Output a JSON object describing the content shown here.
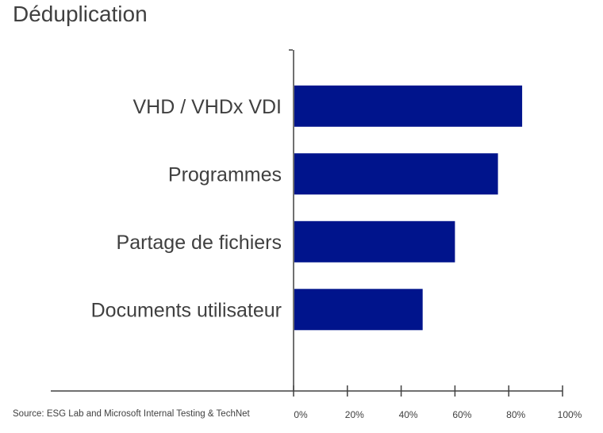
{
  "title": "Déduplication",
  "source": "Source: ESG Lab and Microsoft Internal Testing & TechNet",
  "colors": {
    "bar": "#00148c",
    "axis": "#404040",
    "text": "#404040",
    "background": "#ffffff"
  },
  "chart_data": {
    "type": "bar",
    "orientation": "horizontal",
    "title": "Déduplication",
    "categories": [
      "VHD / VHDx VDI",
      "Programmes",
      "Partage de fichiers",
      "Documents utilisateur"
    ],
    "values": [
      0.85,
      0.76,
      0.6,
      0.48
    ],
    "xlim": [
      0,
      1
    ],
    "xticks": [
      0,
      0.2,
      0.4,
      0.6,
      0.8,
      1
    ],
    "xtick_labels": [
      "0%",
      "20%",
      "40%",
      "60%",
      "80%",
      "100%"
    ],
    "grid": false,
    "legend": false
  }
}
